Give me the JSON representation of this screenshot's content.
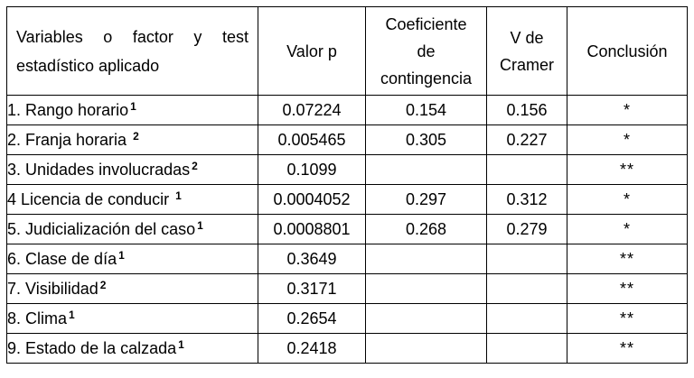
{
  "headers": {
    "variable_line1": "Variables o factor y test",
    "variable_line2": "estadístico aplicado",
    "p_value": "Valor p",
    "contingency_line1": "Coeficiente",
    "contingency_line2": "de",
    "contingency_line3": "contingencia",
    "cramer_line1": "V de",
    "cramer_line2": "Cramer",
    "conclusion": "Conclusión"
  },
  "rows": [
    {
      "variable": "1. Rango horario",
      "sup": "1",
      "p": "0.07224",
      "cc": "0.154",
      "v": "0.156",
      "conclusion": "*"
    },
    {
      "variable": "2. Franja horaria ",
      "sup": "2",
      "p": "0.005465",
      "cc": "0.305",
      "v": "0.227",
      "conclusion": "*"
    },
    {
      "variable": "3. Unidades involucradas",
      "sup": "2",
      "p": "0.1099",
      "cc": "",
      "v": "",
      "conclusion": "**"
    },
    {
      "variable": "4 Licencia de conducir ",
      "sup": "1",
      "p": "0.0004052",
      "cc": "0.297",
      "v": "0.312",
      "conclusion": "*"
    },
    {
      "variable": "5. Judicialización del caso",
      "sup": "1",
      "p": "0.0008801",
      "cc": "0.268",
      "v": "0.279",
      "conclusion": "*"
    },
    {
      "variable": "6. Clase de día",
      "sup": "1",
      "p": "0.3649",
      "cc": "",
      "v": "",
      "conclusion": "**"
    },
    {
      "variable": "7. Visibilidad",
      "sup": "2",
      "p": "0.3171",
      "cc": "",
      "v": "",
      "conclusion": "**"
    },
    {
      "variable": "8. Clima",
      "sup": "1",
      "p": "0.2654",
      "cc": "",
      "v": "",
      "conclusion": "**"
    },
    {
      "variable": "9. Estado de la calzada",
      "sup": "1",
      "p": "0.2418",
      "cc": "",
      "v": "",
      "conclusion": "**"
    }
  ]
}
